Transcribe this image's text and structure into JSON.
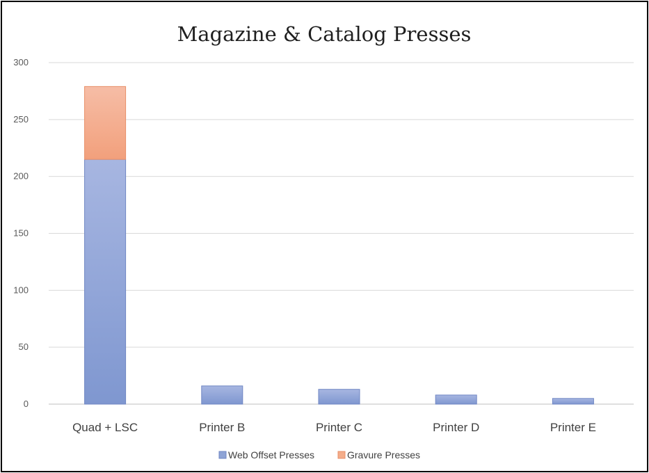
{
  "chart_data": {
    "type": "bar",
    "stacked": true,
    "title": "Magazine & Catalog Presses",
    "xlabel": "",
    "ylabel": "",
    "categories": [
      "Quad + LSC",
      "Printer B",
      "Printer C",
      "Printer D",
      "Printer E"
    ],
    "series": [
      {
        "name": "Web Offset Presses",
        "values": [
          215,
          16,
          13,
          8,
          5
        ],
        "color": "#8fa4d6"
      },
      {
        "name": "Gravure Presses",
        "values": [
          64,
          0,
          0,
          0,
          0
        ],
        "color": "#f4ad8a"
      }
    ],
    "ylim": [
      0,
      300
    ],
    "yticks": [
      "0",
      "50",
      "100",
      "150",
      "200",
      "250",
      "300"
    ],
    "grid": true,
    "legend_position": "bottom"
  }
}
